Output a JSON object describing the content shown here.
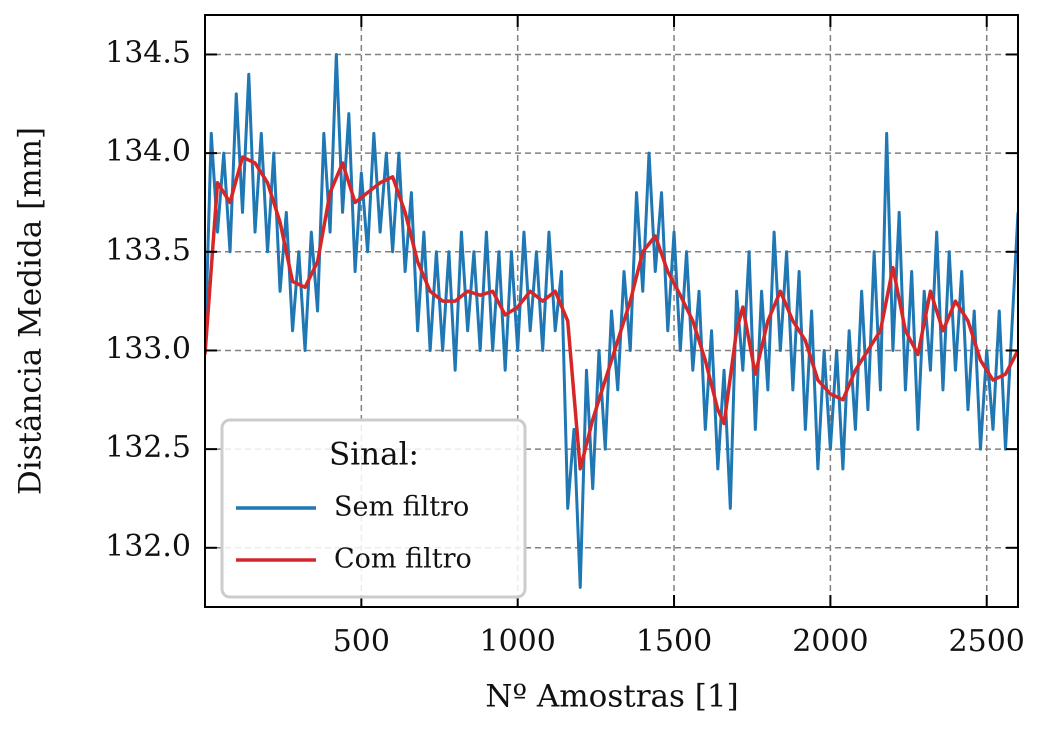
{
  "chart_data": {
    "type": "line",
    "xlabel": "Nº Amostras [1]",
    "ylabel": "Distância Medida [mm]",
    "xlim": [
      0,
      2600
    ],
    "ylim": [
      131.7,
      134.7
    ],
    "xticks": [
      500,
      1000,
      1500,
      2000,
      2500
    ],
    "yticks": [
      {
        "value": 132.0,
        "label": "132.0"
      },
      {
        "value": 132.5,
        "label": "132.5"
      },
      {
        "value": 133.0,
        "label": "133.0"
      },
      {
        "value": 133.5,
        "label": "133.5"
      },
      {
        "value": 134.0,
        "label": "134.0"
      },
      {
        "value": 134.5,
        "label": "134.5"
      }
    ],
    "grid": true,
    "legend_title": "Sinal:",
    "legend_position": "lower left",
    "series": [
      {
        "name": "Sem filtro",
        "color": "#1f77b4",
        "x": [
          0,
          20,
          40,
          60,
          80,
          100,
          120,
          140,
          160,
          180,
          200,
          220,
          240,
          260,
          280,
          300,
          320,
          340,
          360,
          380,
          400,
          420,
          440,
          460,
          480,
          500,
          520,
          540,
          560,
          580,
          600,
          620,
          640,
          660,
          680,
          700,
          720,
          740,
          760,
          780,
          800,
          820,
          840,
          860,
          880,
          900,
          920,
          940,
          960,
          980,
          1000,
          1020,
          1040,
          1060,
          1080,
          1100,
          1120,
          1140,
          1160,
          1180,
          1200,
          1220,
          1240,
          1260,
          1280,
          1300,
          1320,
          1340,
          1360,
          1380,
          1400,
          1420,
          1440,
          1460,
          1480,
          1500,
          1520,
          1540,
          1560,
          1580,
          1600,
          1620,
          1640,
          1660,
          1680,
          1700,
          1720,
          1740,
          1760,
          1780,
          1800,
          1820,
          1840,
          1860,
          1880,
          1900,
          1920,
          1940,
          1960,
          1980,
          2000,
          2020,
          2040,
          2060,
          2080,
          2100,
          2120,
          2140,
          2160,
          2180,
          2200,
          2220,
          2240,
          2260,
          2280,
          2300,
          2320,
          2340,
          2360,
          2380,
          2400,
          2420,
          2440,
          2460,
          2480,
          2500,
          2520,
          2540,
          2560,
          2580,
          2600
        ],
        "values": [
          133.0,
          134.1,
          133.6,
          134.0,
          133.5,
          134.3,
          133.7,
          134.4,
          133.6,
          134.1,
          133.5,
          134.0,
          133.3,
          133.7,
          133.1,
          133.5,
          133.0,
          133.6,
          133.2,
          134.1,
          133.6,
          134.5,
          133.7,
          134.2,
          133.4,
          133.9,
          133.5,
          134.1,
          133.6,
          134.0,
          133.5,
          134.0,
          133.4,
          133.8,
          133.1,
          133.6,
          133.0,
          133.5,
          133.0,
          133.5,
          132.9,
          133.6,
          133.1,
          133.5,
          133.0,
          133.6,
          133.0,
          133.5,
          132.9,
          133.5,
          133.0,
          133.6,
          133.1,
          133.5,
          133.0,
          133.6,
          133.1,
          133.4,
          132.2,
          132.6,
          131.8,
          132.9,
          132.3,
          133.0,
          132.5,
          133.2,
          132.8,
          133.4,
          133.0,
          133.8,
          133.3,
          134.0,
          133.4,
          133.8,
          133.1,
          133.6,
          133.0,
          133.5,
          132.9,
          133.3,
          132.6,
          133.1,
          132.4,
          132.9,
          132.2,
          133.3,
          132.9,
          133.5,
          132.6,
          133.3,
          132.8,
          133.6,
          133.0,
          133.5,
          132.8,
          133.4,
          132.6,
          133.2,
          132.4,
          133.0,
          132.5,
          133.0,
          132.4,
          133.1,
          132.6,
          133.3,
          132.7,
          133.5,
          132.8,
          134.1,
          133.0,
          133.7,
          132.8,
          133.4,
          132.6,
          133.3,
          132.9,
          133.6,
          132.8,
          133.5,
          132.9,
          133.4,
          132.7,
          133.2,
          132.5,
          133.0,
          132.6,
          133.2,
          132.5,
          133.1,
          133.7
        ]
      },
      {
        "name": "Com filtro",
        "color": "#d62728",
        "x": [
          0,
          40,
          80,
          120,
          160,
          200,
          240,
          280,
          320,
          360,
          400,
          440,
          480,
          520,
          560,
          600,
          640,
          680,
          720,
          760,
          800,
          840,
          880,
          920,
          960,
          1000,
          1040,
          1080,
          1120,
          1160,
          1200,
          1240,
          1280,
          1320,
          1360,
          1400,
          1440,
          1480,
          1520,
          1560,
          1600,
          1640,
          1660,
          1700,
          1720,
          1760,
          1800,
          1840,
          1880,
          1920,
          1960,
          2000,
          2040,
          2080,
          2120,
          2160,
          2200,
          2240,
          2280,
          2320,
          2360,
          2400,
          2440,
          2480,
          2520,
          2560,
          2600
        ],
        "values": [
          132.98,
          133.85,
          133.75,
          133.98,
          133.95,
          133.85,
          133.65,
          133.35,
          133.32,
          133.45,
          133.8,
          133.95,
          133.75,
          133.8,
          133.85,
          133.88,
          133.7,
          133.45,
          133.3,
          133.25,
          133.25,
          133.3,
          133.28,
          133.3,
          133.18,
          133.22,
          133.3,
          133.25,
          133.3,
          133.15,
          132.4,
          132.65,
          132.85,
          133.05,
          133.25,
          133.5,
          133.58,
          133.4,
          133.28,
          133.15,
          132.95,
          132.7,
          132.63,
          133.1,
          133.22,
          132.88,
          133.15,
          133.3,
          133.15,
          133.05,
          132.85,
          132.78,
          132.75,
          132.9,
          133.0,
          133.1,
          133.42,
          133.1,
          132.98,
          133.3,
          133.1,
          133.25,
          133.15,
          132.95,
          132.85,
          132.88,
          133.0
        ]
      }
    ]
  }
}
